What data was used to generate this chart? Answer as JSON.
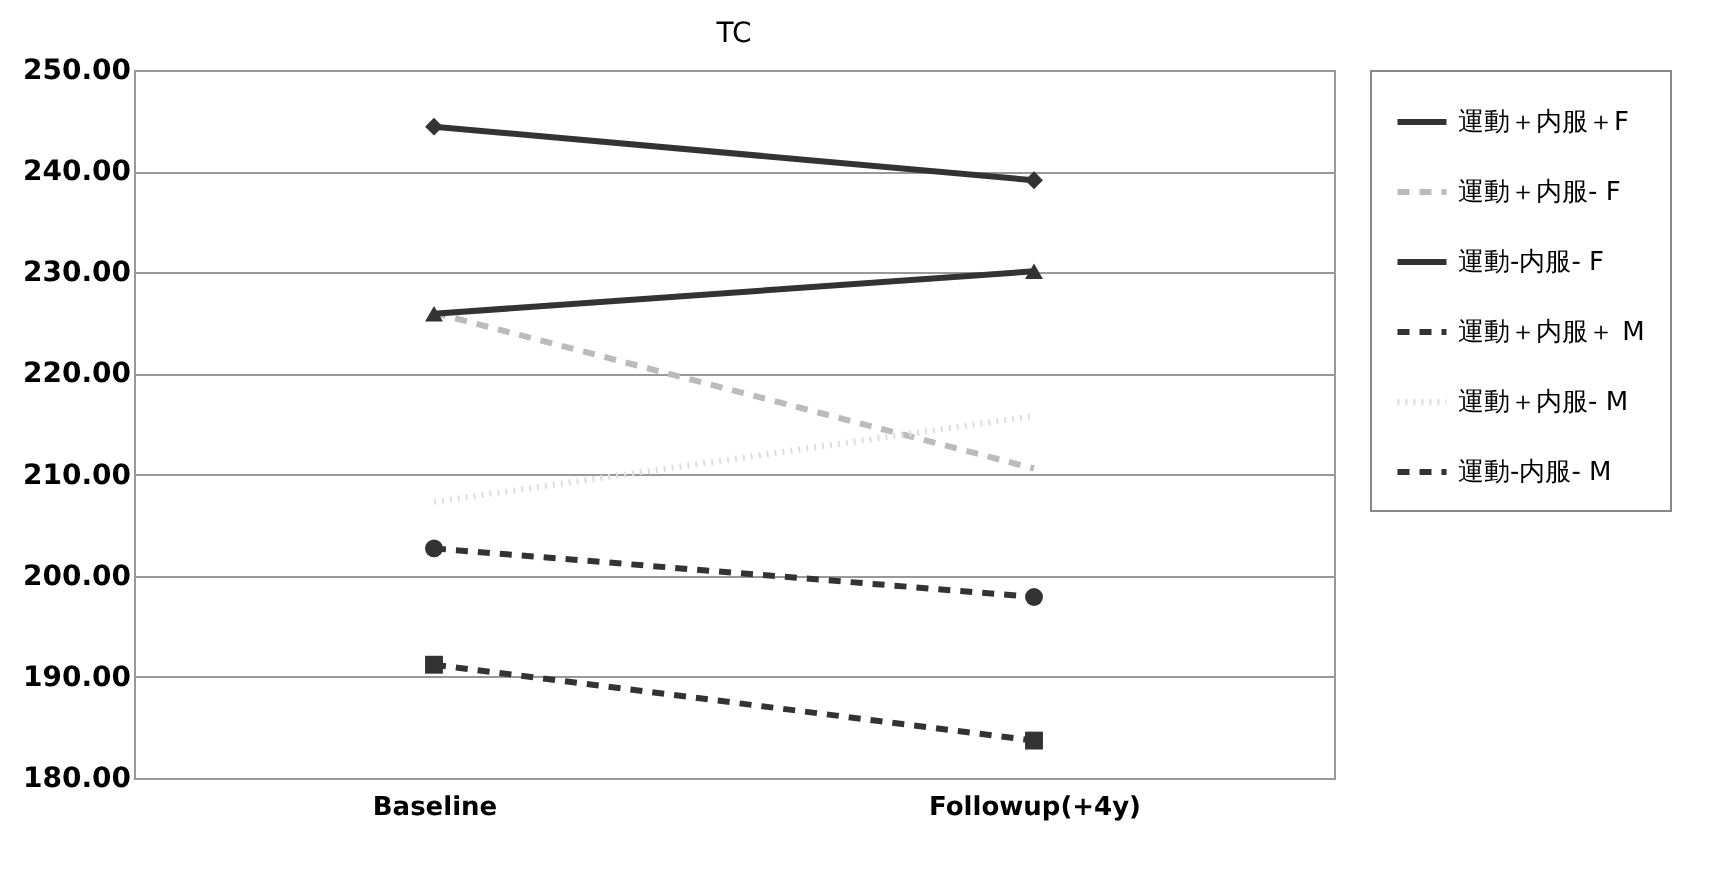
{
  "chart_data": {
    "type": "line",
    "title": "TC",
    "categories": [
      "Baseline",
      "Followup(+4y)"
    ],
    "series": [
      {
        "name": "運動＋内服＋F",
        "color": "#333333",
        "marker": "diamond",
        "line_style": "solid",
        "values": [
          244.4,
          239.1
        ]
      },
      {
        "name": "運動＋内服- F",
        "color": "#bbbbbb",
        "marker": "none",
        "line_style": "dashed",
        "values": [
          226.0,
          210.6
        ]
      },
      {
        "name": "運動-内服- F",
        "color": "#333333",
        "marker": "triangle",
        "line_style": "solid",
        "values": [
          225.9,
          230.1
        ]
      },
      {
        "name": "運動＋内服＋ M",
        "color": "#333333",
        "marker": "square",
        "line_style": "dashed",
        "values": [
          191.2,
          183.7
        ]
      },
      {
        "name": "運動＋内服- M",
        "color": "#dddddd",
        "marker": "none",
        "line_style": "dotted",
        "values": [
          207.3,
          215.8
        ]
      },
      {
        "name": "運動-内服- M",
        "color": "#333333",
        "marker": "circle",
        "line_style": "dashed",
        "values": [
          202.7,
          197.9
        ]
      }
    ],
    "ylim": [
      180,
      250
    ],
    "yticks": [
      {
        "value": 180,
        "label": "180.00"
      },
      {
        "value": 190,
        "label": "190.00"
      },
      {
        "value": 200,
        "label": "200.00"
      },
      {
        "value": 210,
        "label": "210.00"
      },
      {
        "value": 220,
        "label": "220.00"
      },
      {
        "value": 230,
        "label": "230.00"
      },
      {
        "value": 240,
        "label": "240.00"
      },
      {
        "value": 250,
        "label": "250.00"
      }
    ],
    "grid": "y",
    "legend": "right"
  }
}
